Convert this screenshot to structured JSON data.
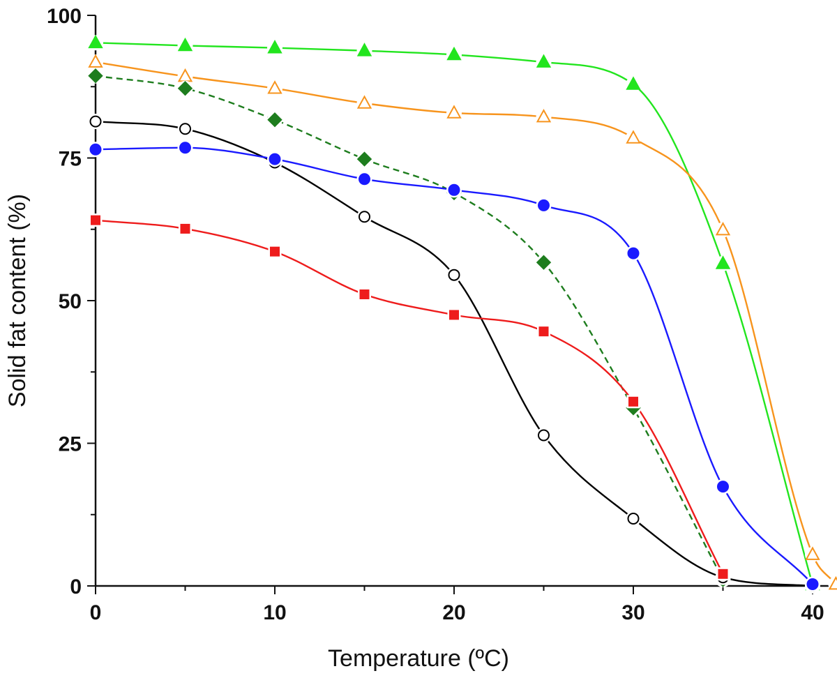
{
  "chart_data": {
    "type": "line",
    "xlabel": "Temperature (ºC)",
    "ylabel": "Solid fat content (%)",
    "xlim": [
      0,
      41.5
    ],
    "ylim": [
      0,
      100
    ],
    "x_ticks": [
      0,
      10,
      20,
      30,
      40
    ],
    "x_tick_labels": [
      "0",
      "10",
      "20",
      "30",
      "40"
    ],
    "x_minor_ticks": [
      5,
      15,
      25,
      35
    ],
    "y_ticks": [
      0,
      25,
      50,
      75,
      100
    ],
    "y_tick_labels": [
      "0",
      "25",
      "50",
      "75",
      "100"
    ],
    "y_minor_ticks": [
      12.5,
      37.5,
      62.5,
      87.5
    ],
    "grid": false,
    "legend": "none",
    "series": [
      {
        "marker": "triangle-filled",
        "line": "solid",
        "color": "#22e51e",
        "x": [
          0,
          5,
          10,
          15,
          20,
          25,
          30,
          35,
          40
        ],
        "y": [
          95.2,
          94.7,
          94.3,
          93.8,
          93.1,
          91.8,
          87.9,
          56.5,
          0.2
        ]
      },
      {
        "marker": "triangle-open",
        "line": "solid",
        "color": "#f7941d",
        "x": [
          0,
          5,
          10,
          15,
          20,
          25,
          30,
          35,
          40,
          41.3
        ],
        "y": [
          91.8,
          89.3,
          87.2,
          84.6,
          82.9,
          82.2,
          78.5,
          62.4,
          5.5,
          0.3
        ]
      },
      {
        "marker": "diamond-filled",
        "line": "dashed",
        "color": "#1e7d1e",
        "x": [
          0,
          5,
          10,
          15,
          20,
          25,
          30,
          35
        ],
        "y": [
          89.4,
          87.2,
          81.7,
          74.8,
          68.9,
          56.7,
          31.2,
          1.1
        ]
      },
      {
        "marker": "circle-open",
        "line": "solid",
        "color": "#000000",
        "x": [
          0,
          5,
          10,
          15,
          20,
          25,
          30,
          35,
          40
        ],
        "y": [
          81.4,
          80.1,
          74.2,
          64.7,
          54.5,
          26.4,
          11.8,
          1.5,
          0
        ]
      },
      {
        "marker": "circle-filled",
        "line": "solid",
        "color": "#1a1aff",
        "x": [
          0,
          5,
          10,
          15,
          20,
          25,
          30,
          35,
          40
        ],
        "y": [
          76.5,
          76.8,
          74.8,
          71.3,
          69.4,
          66.7,
          58.3,
          17.4,
          0.3
        ]
      },
      {
        "marker": "square-filled",
        "line": "solid",
        "color": "#ee1c1c",
        "x": [
          0,
          5,
          10,
          15,
          20,
          25,
          30,
          35
        ],
        "y": [
          64.1,
          62.6,
          58.6,
          51.1,
          47.5,
          44.6,
          32.3,
          2.1
        ]
      }
    ]
  }
}
